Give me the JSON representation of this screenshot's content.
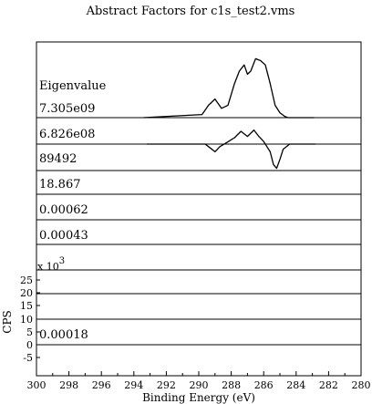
{
  "chart_data": {
    "type": "line",
    "title": "Abstract Factors for c1s_test2.vms",
    "xlabel": "Binding Energy (eV)",
    "ylabel": "CPS",
    "xlim": [
      300,
      280
    ],
    "x_reversed": true,
    "x_ticks": [
      "300",
      "298",
      "296",
      "294",
      "292",
      "290",
      "288",
      "286",
      "284",
      "282",
      "280"
    ],
    "ylim": [
      -10,
      30
    ],
    "y_ticks": [
      "25",
      "20",
      "15",
      "10",
      "5",
      "0",
      "-5"
    ],
    "y_multiplier": "x 10",
    "y_multiplier_exp": "3",
    "eigen_header": "Eigenvalue",
    "grid": false,
    "legend": "none",
    "factors": [
      {
        "eigenvalue": "7.305e09",
        "x": [
          289.8,
          289.4,
          289.0,
          288.6,
          288.2,
          287.8,
          287.5,
          287.2,
          287.0,
          286.8,
          286.5,
          286.2,
          285.9,
          285.6,
          285.3,
          285.0,
          284.7,
          284.5
        ],
        "y": [
          0.05,
          0.2,
          0.3,
          0.15,
          0.2,
          0.55,
          0.75,
          0.85,
          0.7,
          0.75,
          0.95,
          0.92,
          0.85,
          0.55,
          0.2,
          0.08,
          0.02,
          0.0
        ]
      },
      {
        "eigenvalue": "6.826e08",
        "x": [
          289.6,
          289.3,
          289.0,
          288.7,
          288.3,
          287.8,
          287.4,
          287.0,
          286.6,
          286.3,
          286.0,
          285.6,
          285.4,
          285.2,
          285.0,
          284.8,
          284.4
        ],
        "y": [
          0.0,
          -0.15,
          -0.3,
          -0.1,
          0.05,
          0.25,
          0.5,
          0.3,
          0.55,
          0.3,
          0.1,
          -0.3,
          -0.8,
          -0.95,
          -0.6,
          -0.2,
          0.0
        ]
      },
      {
        "eigenvalue": "89492"
      },
      {
        "eigenvalue": "18.867"
      },
      {
        "eigenvalue": "0.00062"
      },
      {
        "eigenvalue": "0.00043"
      },
      {
        "eigenvalue": ""
      },
      {
        "eigenvalue": ""
      },
      {
        "eigenvalue": "0.00018"
      }
    ]
  }
}
